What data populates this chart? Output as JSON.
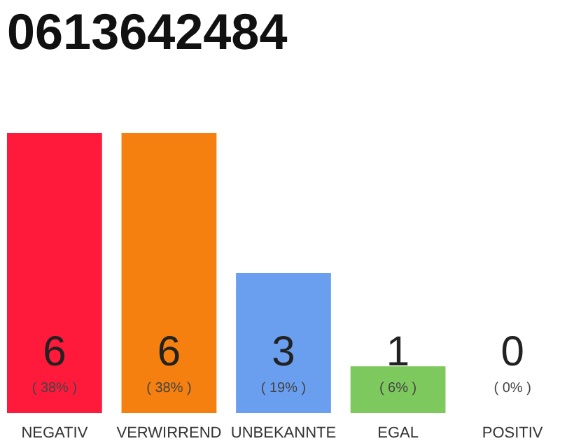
{
  "chart_data": {
    "type": "bar",
    "title": "0613642484",
    "categories": [
      "NEGATIV",
      "VERWIRREND",
      "UNBEKANNTE",
      "EGAL",
      "POSITIV"
    ],
    "values": [
      6,
      6,
      3,
      1,
      0
    ],
    "colors": [
      "#ff1a3c",
      "#f5800f",
      "#6a9ff0",
      "#7dc95e",
      "#cccccc"
    ],
    "annotations": [
      "( 38% )",
      "( 38% )",
      "( 19% )",
      "( 6% )",
      "( 0% )"
    ],
    "data_labels": true,
    "tick_labels": "x",
    "grid": false
  }
}
